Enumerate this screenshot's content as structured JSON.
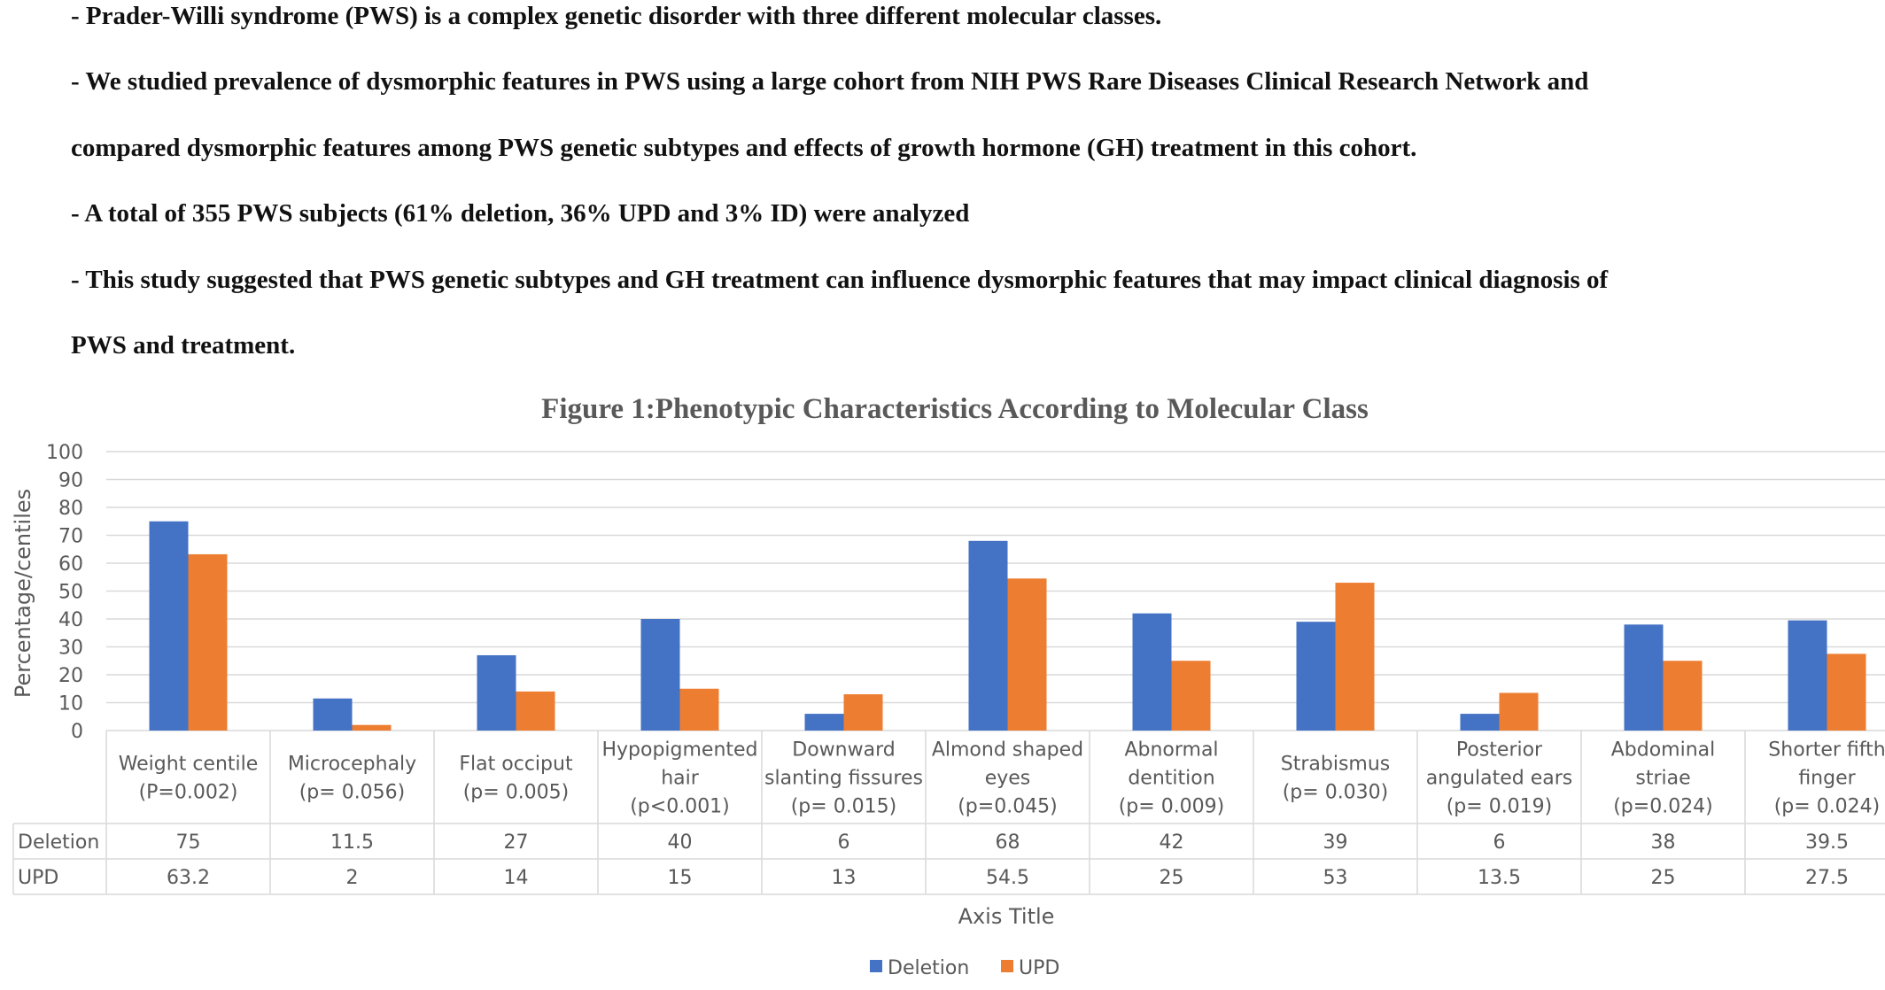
{
  "bullets": [
    "- Prader-Willi syndrome (PWS) is a complex genetic disorder with three different molecular classes.",
    "- We studied prevalence of dysmorphic features in PWS using a large cohort from NIH PWS Rare Diseases Clinical Research Network and",
    "compared dysmorphic features among PWS genetic subtypes and effects of growth hormone (GH) treatment in this cohort.",
    "- A total of 355 PWS subjects (61% deletion, 36% UPD and 3% ID) were analyzed",
    "- This study suggested that PWS genetic subtypes and GH treatment can influence dysmorphic features that may impact clinical diagnosis of",
    "PWS and treatment."
  ],
  "chart_data": {
    "type": "bar",
    "title": "Figure 1:Phenotypic Characteristics According to Molecular Class",
    "ylabel": "Percentage/centiles",
    "xlabel": "Axis Title",
    "ylim": [
      0,
      100
    ],
    "yticks": [
      0,
      10,
      20,
      30,
      40,
      50,
      60,
      70,
      80,
      90,
      100
    ],
    "grid": true,
    "legend_position": "bottom",
    "data_table": true,
    "categories": [
      [
        "Weight centile",
        "(P=0.002)"
      ],
      [
        "Microcephaly",
        "(p= 0.056)"
      ],
      [
        "Flat occiput",
        "(p= 0.005)"
      ],
      [
        "Hypopigmented",
        "hair",
        "(p<0.001)"
      ],
      [
        "Downward",
        "slanting fissures",
        "(p= 0.015)"
      ],
      [
        "Almond shaped",
        "eyes",
        "(p=0.045)"
      ],
      [
        "Abnormal",
        "dentition",
        "(p= 0.009)"
      ],
      [
        "Strabismus",
        "(p= 0.030)"
      ],
      [
        "Posterior",
        "angulated ears",
        "(p= 0.019)"
      ],
      [
        "Abdominal",
        "striae",
        "(p=0.024)"
      ],
      [
        "Shorter fifth",
        "finger",
        "(p= 0.024)"
      ]
    ],
    "series": [
      {
        "name": "Deletion",
        "color": "#4472C4",
        "values": [
          75,
          11.5,
          27,
          40,
          6,
          68,
          42,
          39,
          6,
          38,
          39.5
        ],
        "labels": [
          "75",
          "11.5",
          "27",
          "40",
          "6",
          "68",
          "42",
          "39",
          "6",
          "38",
          "39.5"
        ]
      },
      {
        "name": "UPD",
        "color": "#ED7D31",
        "values": [
          63.2,
          2,
          14,
          15,
          13,
          54.5,
          25,
          53,
          13.5,
          25,
          27.5
        ],
        "labels": [
          "63.2",
          "2",
          "14",
          "15",
          "13",
          "54.5",
          "25",
          "53",
          "13.5",
          "25",
          "27.5"
        ]
      }
    ]
  }
}
